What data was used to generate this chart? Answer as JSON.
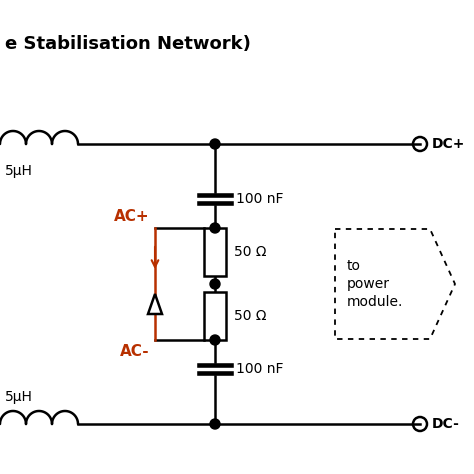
{
  "bg_color": "#ffffff",
  "title_text": "e Stabilisation Network)",
  "title_color": "#000000",
  "title_fontsize": 13,
  "line_color": "#000000",
  "orange_color": "#b83000",
  "lw": 1.8,
  "label_DC_plus": "DC+",
  "label_DC_minus": "DC-",
  "label_5uH_top": "5μH",
  "label_5uH_bot": "5μH",
  "label_100nF_top": "100 nF",
  "label_100nF_bot": "100 nF",
  "label_50ohm_top": "50 Ω",
  "label_50ohm_bot": "50 Ω",
  "label_to_power_line1": "to",
  "label_to_power_line2": "power",
  "label_to_power_line3": "module",
  "label_AC_plus": "AC+",
  "label_AC_minus": "AC-"
}
